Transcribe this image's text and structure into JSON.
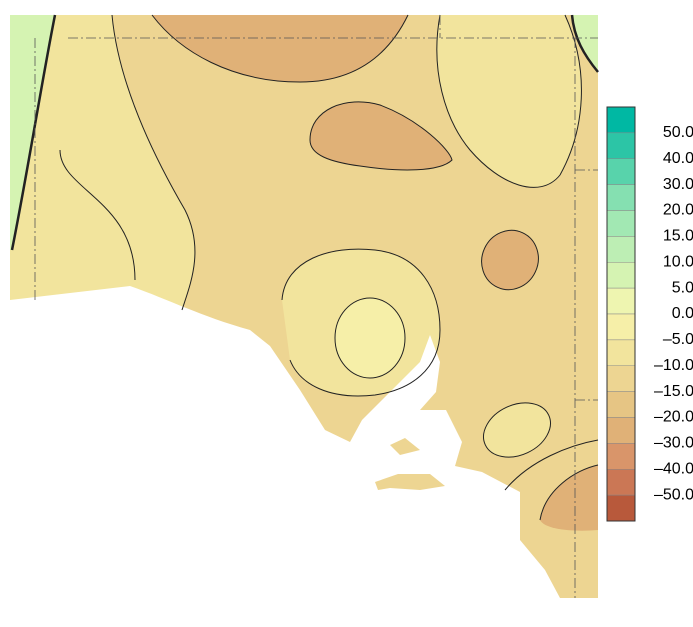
{
  "legend": {
    "labels": [
      "50.0",
      "40.0",
      "30.0",
      "20.0",
      "15.0",
      "10.0",
      "5.0",
      "0.0",
      "–5.0",
      "–10.0",
      "–15.0",
      "–20.0",
      "–30.0",
      "–40.0",
      "–50.0"
    ],
    "colors": [
      "#00b8a3",
      "#2cc5a6",
      "#58d3ab",
      "#85e0b1",
      "#a2e8b3",
      "#bdeeb4",
      "#d5f3b2",
      "#eef5b0",
      "#f6efa8",
      "#f2e49d",
      "#edd592",
      "#e6c584",
      "#e0b177",
      "#d9956a",
      "#cb7755",
      "#b8593b"
    ]
  }
}
